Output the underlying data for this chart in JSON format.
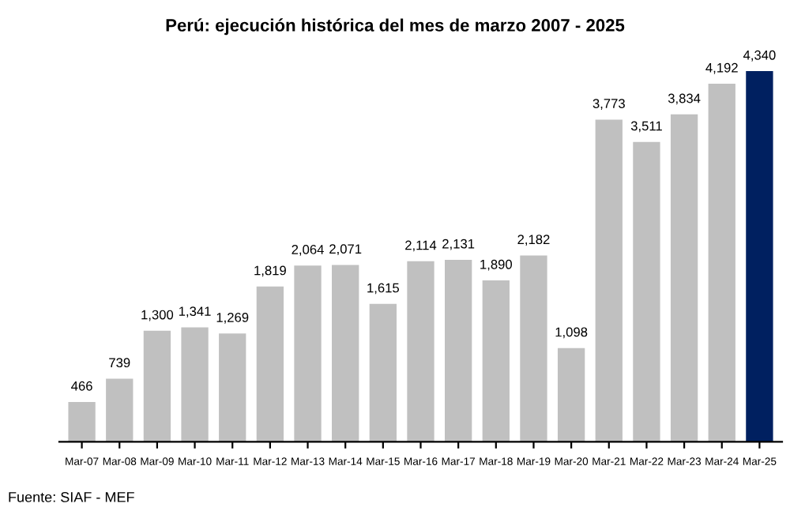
{
  "chart_data": {
    "type": "bar",
    "title": "Perú: ejecución histórica del mes de marzo 2007 - 2025",
    "categories": [
      "Mar-07",
      "Mar-08",
      "Mar-09",
      "Mar-10",
      "Mar-11",
      "Mar-12",
      "Mar-13",
      "Mar-14",
      "Mar-15",
      "Mar-16",
      "Mar-17",
      "Mar-18",
      "Mar-19",
      "Mar-20",
      "Mar-21",
      "Mar-22",
      "Mar-23",
      "Mar-24",
      "Mar-25"
    ],
    "values": [
      466,
      739,
      1300,
      1341,
      1269,
      1819,
      2064,
      2071,
      1615,
      2114,
      2131,
      1890,
      2182,
      1098,
      3773,
      3511,
      3834,
      4192,
      4340
    ],
    "value_labels": [
      "466",
      "739",
      "1,300",
      "1,341",
      "1,269",
      "1,819",
      "2,064",
      "2,071",
      "1,615",
      "2,114",
      "2,131",
      "1,890",
      "2,182",
      "1,098",
      "3,773",
      "3,511",
      "3,834",
      "4,192",
      "4,340"
    ],
    "colors": [
      "#c0c0c0",
      "#c0c0c0",
      "#c0c0c0",
      "#c0c0c0",
      "#c0c0c0",
      "#c0c0c0",
      "#c0c0c0",
      "#c0c0c0",
      "#c0c0c0",
      "#c0c0c0",
      "#c0c0c0",
      "#c0c0c0",
      "#c0c0c0",
      "#c0c0c0",
      "#c0c0c0",
      "#c0c0c0",
      "#c0c0c0",
      "#c0c0c0",
      "#002060"
    ],
    "annotations": [
      "Fuente: SIAF - MEF"
    ],
    "grid": false,
    "legend": false
  }
}
